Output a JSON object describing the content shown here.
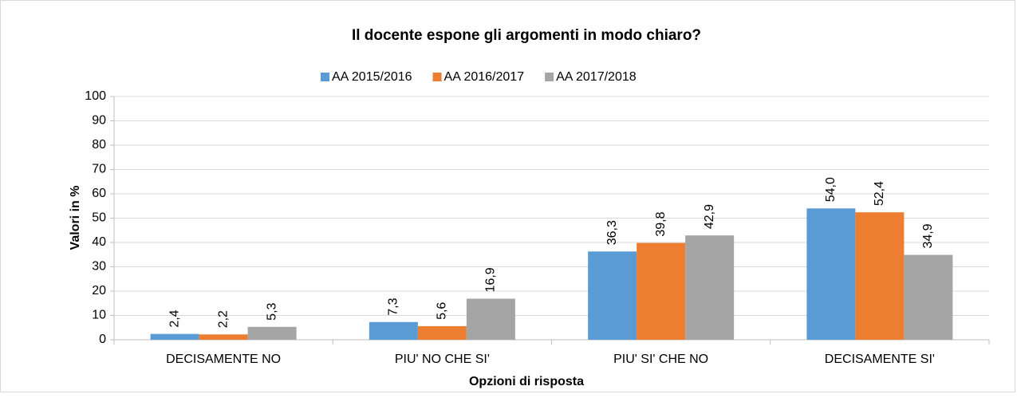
{
  "chart_data": {
    "type": "bar",
    "title": "Il docente espone gli argomenti in modo chiaro?",
    "x_label": "Opzioni di risposta",
    "y_label": "Valori in %",
    "categories": [
      "DECISAMENTE NO",
      "PIU' NO CHE SI'",
      "PIU' SI' CHE NO",
      "DECISAMENTE SI'"
    ],
    "series": [
      {
        "name": "AA 2015/2016",
        "color": "#5b9bd5",
        "values": [
          2.4,
          7.3,
          36.3,
          54.0
        ],
        "value_labels": [
          "2,4",
          "7,3",
          "36,3",
          "54,0"
        ]
      },
      {
        "name": "AA 2016/2017",
        "color": "#ed7d31",
        "values": [
          2.2,
          5.6,
          39.8,
          52.4
        ],
        "value_labels": [
          "2,2",
          "5,6",
          "39,8",
          "52,4"
        ]
      },
      {
        "name": "AA 2017/2018",
        "color": "#a5a5a5",
        "values": [
          5.3,
          16.9,
          42.9,
          34.9
        ],
        "value_labels": [
          "5,3",
          "16,9",
          "42,9",
          "34,9"
        ]
      }
    ],
    "ylim": [
      0,
      100
    ],
    "yticks": [
      0,
      10,
      20,
      30,
      40,
      50,
      60,
      70,
      80,
      90,
      100
    ],
    "grid": true,
    "legend": "top"
  }
}
